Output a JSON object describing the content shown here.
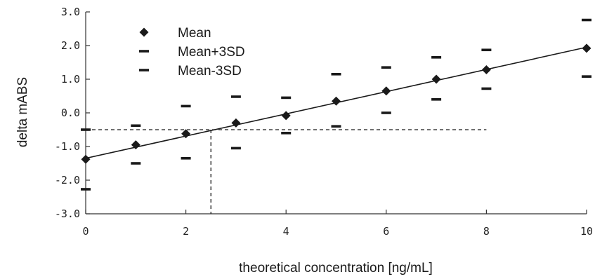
{
  "chart_data": {
    "type": "scatter",
    "title": "",
    "xlabel": "theoretical concentration [ng/mL]",
    "ylabel": "delta mABS",
    "xlim": [
      0,
      10
    ],
    "ylim": [
      -3.0,
      3.0
    ],
    "x_ticks": [
      "0",
      "2",
      "4",
      "6",
      "8",
      "10"
    ],
    "y_ticks": [
      "3.0",
      "2.0",
      "1.0",
      "0.0",
      "-1.0",
      "-2.0",
      "-3.0"
    ],
    "grid": false,
    "legend_position": "top-left",
    "series": [
      {
        "name": "Mean",
        "marker": "diamond",
        "x": [
          0,
          1,
          2,
          3,
          4,
          5,
          6,
          7,
          8,
          10
        ],
        "y": [
          -1.38,
          -0.95,
          -0.62,
          -0.3,
          -0.08,
          0.35,
          0.65,
          1.0,
          1.28,
          1.92
        ]
      },
      {
        "name": "Mean+3SD",
        "marker": "dash",
        "x": [
          0,
          1,
          2,
          3,
          4,
          5,
          6,
          7,
          8,
          10
        ],
        "y": [
          -0.5,
          -0.38,
          0.2,
          0.48,
          0.45,
          1.15,
          1.35,
          1.65,
          1.87,
          2.76
        ]
      },
      {
        "name": "Mean-3SD",
        "marker": "dash",
        "x": [
          0,
          1,
          2,
          3,
          4,
          5,
          6,
          7,
          8,
          10
        ],
        "y": [
          -2.27,
          -1.5,
          -1.35,
          -1.05,
          -0.6,
          -0.4,
          0.0,
          0.4,
          0.72,
          1.08
        ]
      }
    ],
    "fit_line": {
      "x": [
        0,
        10
      ],
      "y": [
        -1.35,
        1.95
      ]
    },
    "reference_lines": {
      "horizontal_y": -0.5,
      "horizontal_x_range": [
        0,
        8
      ],
      "vertical_x": 2.5,
      "vertical_y_range": [
        -3.0,
        -0.5
      ]
    },
    "colors": {
      "marker": "#1a1a1a",
      "line": "#1a1a1a",
      "reference": "#1a1a1a",
      "axis": "#333333"
    }
  }
}
